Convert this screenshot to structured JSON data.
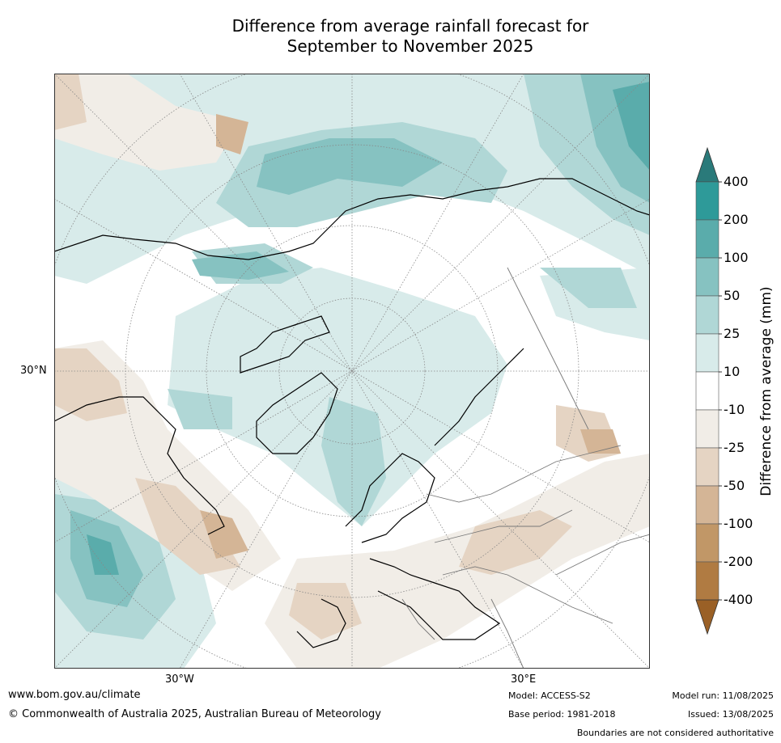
{
  "title": {
    "line1": "Difference from average rainfall forecast for",
    "line2": "September to November 2025"
  },
  "map": {
    "projection": "north-polar-stereographic",
    "graticule": {
      "lat_30n": "30°N",
      "lon_30w": "30°W",
      "lon_30e": "30°E"
    }
  },
  "colorbar": {
    "title": "Difference from average (mm)",
    "ticks": [
      "400",
      "200",
      "100",
      "50",
      "25",
      "10",
      "-10",
      "-25",
      "-50",
      "-100",
      "-200",
      "-400"
    ],
    "bins": [
      {
        "range": ">400",
        "color": "#2a7a7a"
      },
      {
        "range": "200 to 400",
        "color": "#2e9a99"
      },
      {
        "range": "100 to 200",
        "color": "#5aacab"
      },
      {
        "range": "50 to 100",
        "color": "#86c2c1"
      },
      {
        "range": "25 to 50",
        "color": "#b0d7d6"
      },
      {
        "range": "10 to 25",
        "color": "#d8ebea"
      },
      {
        "range": "-10 to 10",
        "color": "#ffffff"
      },
      {
        "range": "-25 to -10",
        "color": "#f1ede7"
      },
      {
        "range": "-50 to -25",
        "color": "#e5d4c3"
      },
      {
        "range": "-100 to -50",
        "color": "#d4b596"
      },
      {
        "range": "-200 to -100",
        "color": "#c19767"
      },
      {
        "range": "-400 to -200",
        "color": "#b07b42"
      },
      {
        "range": "<-400",
        "color": "#9a6026"
      }
    ]
  },
  "footer": {
    "url": "www.bom.gov.au/climate",
    "copyright": "© Commonwealth of Australia 2025, Australian Bureau of Meteorology",
    "model": "Model: ACCESS-S2",
    "base_period": "Base period: 1981-2018",
    "model_run": "Model run: 11/08/2025",
    "issued": "Issued: 13/08/2025",
    "disclaimer": "Boundaries are not considered authoritative"
  }
}
